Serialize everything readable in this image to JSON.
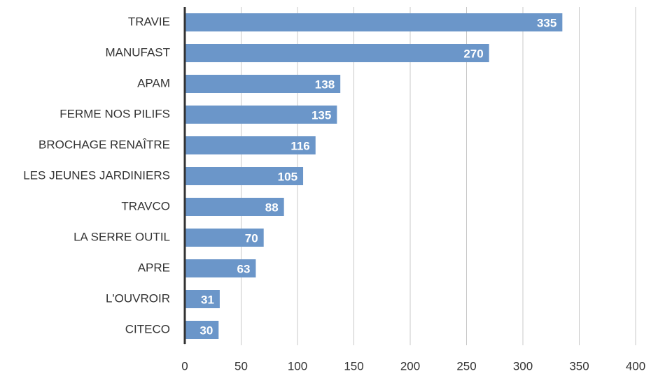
{
  "chart_data": {
    "type": "bar",
    "orientation": "horizontal",
    "categories": [
      "TRAVIE",
      "MANUFAST",
      "APAM",
      "FERME NOS PILIFS",
      "BROCHAGE RENAÎTRE",
      "LES JEUNES JARDINIERS",
      "TRAVCO",
      "LA SERRE OUTIL",
      "APRE",
      "L'OUVROIR",
      "CITECO"
    ],
    "values": [
      335,
      270,
      138,
      135,
      116,
      105,
      88,
      70,
      63,
      31,
      30
    ],
    "color": "#6b96c9",
    "xlim": [
      0,
      400
    ],
    "xticks": [
      0,
      50,
      100,
      150,
      200,
      250,
      300,
      350,
      400
    ],
    "grid": true
  }
}
